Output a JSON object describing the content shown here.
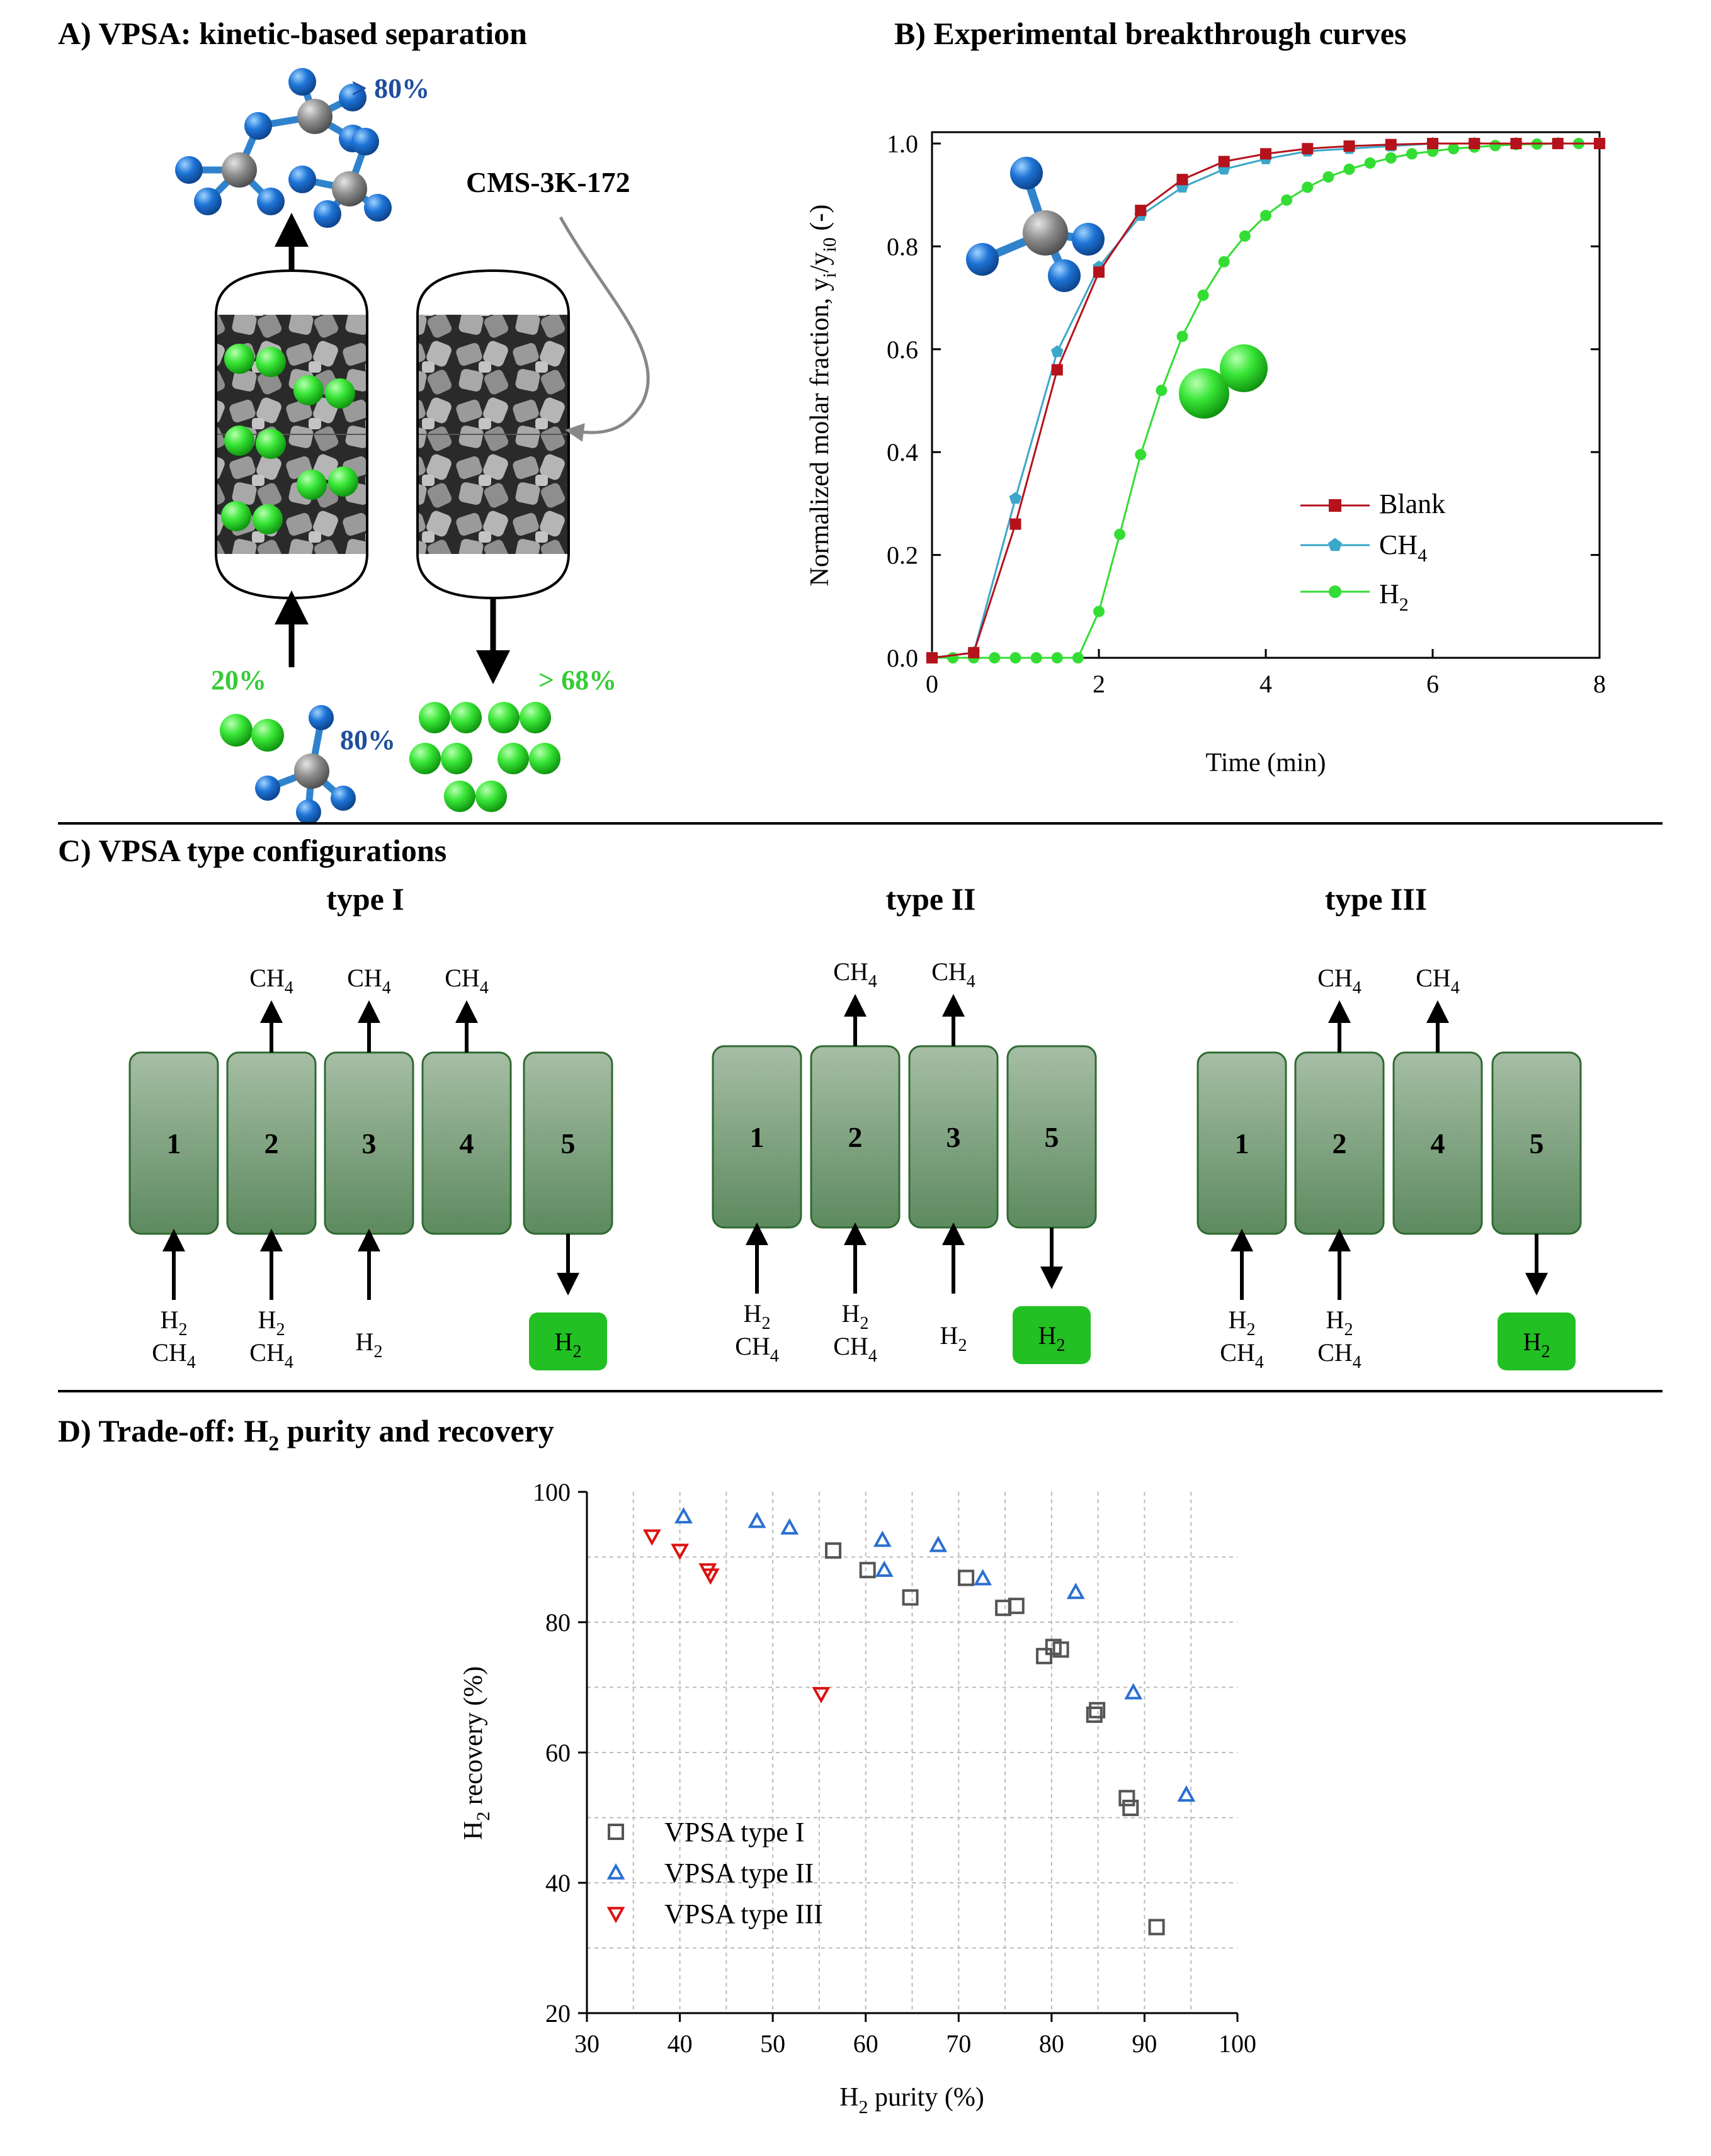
{
  "panels": {
    "a": {
      "title": "A) VPSA: kinetic-based separation",
      "adsorbent": "CMS-3K-172",
      "top_pct": "> 80%",
      "feed_h2_pct": "20%",
      "feed_ch4_pct": "80%",
      "product_pct": "> 68%"
    },
    "b": {
      "title": "B) Experimental breakthrough curves"
    },
    "c": {
      "title": "C) VPSA type configurations",
      "h2": "H",
      "ch4": "CH",
      "sub2": "2",
      "sub4": "4",
      "type1": {
        "title": "type I",
        "columns": [
          "1",
          "2",
          "3",
          "4",
          "5"
        ]
      },
      "type2": {
        "title": "type II",
        "columns": [
          "1",
          "2",
          "3",
          "5"
        ]
      },
      "type3": {
        "title": "type III",
        "columns": [
          "1",
          "2",
          "4",
          "5"
        ]
      }
    },
    "d": {
      "title_main": "D) Trade-off: H",
      "title_sub": "2",
      "title_rest": " purity and recovery"
    }
  },
  "chart_data": [
    {
      "type": "line",
      "xlabel": "Time (min)",
      "ylabel": "Normalized molar fraction, y_i/y_i0 (-)",
      "xlim": [
        0,
        8
      ],
      "ylim": [
        0,
        1.0
      ],
      "xticks": [
        "0",
        "2",
        "4",
        "6",
        "8"
      ],
      "yticks": [
        "0.0",
        "0.2",
        "0.4",
        "0.6",
        "0.8",
        "1.0"
      ],
      "series": [
        {
          "name": "Blank",
          "color": "#b5121b",
          "marker": "square",
          "x": [
            0,
            0.5,
            1,
            1.5,
            2,
            2.5,
            3,
            3.5,
            4,
            4.5,
            5,
            5.5,
            6,
            6.5,
            7,
            7.5,
            8
          ],
          "y": [
            0,
            0.01,
            0.26,
            0.56,
            0.75,
            0.87,
            0.93,
            0.965,
            0.98,
            0.99,
            0.995,
            0.998,
            1.0,
            1.0,
            1.0,
            1.0,
            1.0
          ]
        },
        {
          "name": "CH4",
          "color": "#3ba7c9",
          "marker": "pentagon",
          "x": [
            0,
            0.5,
            1,
            1.5,
            2,
            2.5,
            3,
            3.5,
            4,
            4.5,
            5,
            5.5,
            6,
            6.5,
            7,
            7.5,
            8
          ],
          "y": [
            0,
            0.01,
            0.31,
            0.595,
            0.76,
            0.86,
            0.915,
            0.95,
            0.97,
            0.985,
            0.99,
            0.995,
            1.0,
            1.0,
            1.0,
            1.0,
            1.0
          ]
        },
        {
          "name": "H2",
          "color": "#33dd33",
          "marker": "circle",
          "x": [
            0,
            0.25,
            0.5,
            0.75,
            1,
            1.25,
            1.5,
            1.75,
            2,
            2.25,
            2.5,
            2.75,
            3,
            3.25,
            3.5,
            3.75,
            4,
            4.25,
            4.5,
            4.75,
            5,
            5.25,
            5.5,
            5.75,
            6,
            6.25,
            6.5,
            6.75,
            7,
            7.25,
            7.5,
            7.75,
            8
          ],
          "y": [
            0,
            0,
            0,
            0,
            0,
            0,
            0,
            0,
            0.09,
            0.24,
            0.395,
            0.52,
            0.625,
            0.705,
            0.77,
            0.82,
            0.86,
            0.89,
            0.915,
            0.935,
            0.95,
            0.962,
            0.972,
            0.98,
            0.985,
            0.99,
            0.993,
            0.996,
            0.998,
            0.999,
            1.0,
            1.0,
            1.0
          ]
        }
      ],
      "legend": {
        "position": "center-right",
        "labels": [
          "Blank",
          "CH",
          "H"
        ],
        "subs": [
          "",
          "4",
          "2"
        ]
      }
    },
    {
      "type": "scatter",
      "xlabel_main": "H",
      "xlabel_sub": "2",
      "xlabel_rest": " purity (%)",
      "ylabel_main": "H",
      "ylabel_sub": "2",
      "ylabel_rest": " recovery (%)",
      "xlim": [
        30,
        100
      ],
      "ylim": [
        20,
        100
      ],
      "xticks": [
        "30",
        "40",
        "50",
        "60",
        "70",
        "80",
        "90",
        "100"
      ],
      "yticks": [
        "20",
        "40",
        "60",
        "80",
        "100"
      ],
      "grid": true,
      "series": [
        {
          "name": "VPSA type I",
          "color": "#555555",
          "marker": "square",
          "points": [
            [
              56.5,
              91
            ],
            [
              60.2,
              88
            ],
            [
              64.8,
              83.8
            ],
            [
              70.8,
              86.8
            ],
            [
              74.8,
              82.2
            ],
            [
              76.2,
              82.5
            ],
            [
              79.2,
              74.8
            ],
            [
              80.2,
              76.2
            ],
            [
              81.0,
              75.8
            ],
            [
              84.6,
              65.8
            ],
            [
              84.9,
              66.5
            ],
            [
              88.1,
              53.0
            ],
            [
              88.5,
              51.5
            ],
            [
              91.3,
              33.2
            ]
          ]
        },
        {
          "name": "VPSA type II",
          "color": "#2a6fd0",
          "marker": "triangle-up",
          "points": [
            [
              40.4,
              96.2
            ],
            [
              48.3,
              95.5
            ],
            [
              51.8,
              94.5
            ],
            [
              61.8,
              92.6
            ],
            [
              62.0,
              88.0
            ],
            [
              67.8,
              91.8
            ],
            [
              72.6,
              86.7
            ],
            [
              82.6,
              84.6
            ],
            [
              88.8,
              69.2
            ],
            [
              94.5,
              53.5
            ]
          ]
        },
        {
          "name": "VPSA type III",
          "color": "#dd1111",
          "marker": "triangle-down",
          "points": [
            [
              37.0,
              93.2
            ],
            [
              40.0,
              91.0
            ],
            [
              43.0,
              88.0
            ],
            [
              43.3,
              87.2
            ],
            [
              55.2,
              69.0
            ]
          ]
        }
      ],
      "legend": {
        "position": "lower-left"
      }
    }
  ]
}
